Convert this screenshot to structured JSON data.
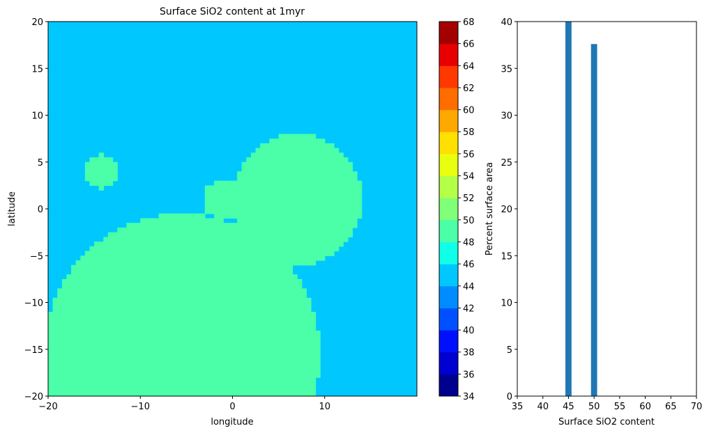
{
  "chart_data": [
    {
      "type": "heatmap",
      "title": "Surface SiO2 content at 1myr",
      "xlabel": "longitude",
      "ylabel": "latitude",
      "xlim": [
        -20,
        20
      ],
      "ylim": [
        -20,
        20
      ],
      "xticks": [
        -20,
        -10,
        0,
        10
      ],
      "yticks": [
        -20,
        -15,
        -10,
        -5,
        0,
        5,
        10,
        15,
        20
      ],
      "background_value": 45,
      "background_color": "#00c8ff",
      "fill_value": 50,
      "fill_color": "#4affa8",
      "regions": [
        {
          "shape": "circle",
          "center": [
            -5.5,
            -15.5
          ],
          "radius": 15.0
        },
        {
          "shape": "circle",
          "center": [
            7,
            1
          ],
          "radius": 7.0
        },
        {
          "shape": "circle",
          "center": [
            -1.2,
            1
          ],
          "radius": 2.0
        },
        {
          "shape": "circle",
          "center": [
            -14.2,
            4
          ],
          "radius": 1.8
        }
      ]
    },
    {
      "type": "colorbar",
      "ticks": [
        34,
        36,
        38,
        40,
        42,
        44,
        46,
        48,
        50,
        52,
        54,
        56,
        58,
        60,
        62,
        64,
        66,
        68
      ],
      "colors": [
        "#00008f",
        "#0000d0",
        "#0010ff",
        "#0050ff",
        "#008cff",
        "#00c8ff",
        "#10ffe8",
        "#4affa8",
        "#80ff78",
        "#b4ff48",
        "#e8ff10",
        "#ffe000",
        "#ffa800",
        "#ff6c00",
        "#ff3800",
        "#e80000",
        "#a30000"
      ]
    },
    {
      "type": "bar",
      "xlabel": "Surface SiO2 content",
      "ylabel": "Percent surface area",
      "xlim": [
        35,
        70
      ],
      "ylim": [
        0,
        40
      ],
      "xticks": [
        35,
        40,
        45,
        50,
        55,
        60,
        65,
        70
      ],
      "yticks": [
        0,
        5,
        10,
        15,
        20,
        25,
        30,
        35,
        40
      ],
      "bar_color": "#1f77b4",
      "bin_width": 1.2,
      "bars": [
        {
          "x": 45,
          "value": 40.5
        },
        {
          "x": 50,
          "value": 37.6
        }
      ]
    }
  ]
}
